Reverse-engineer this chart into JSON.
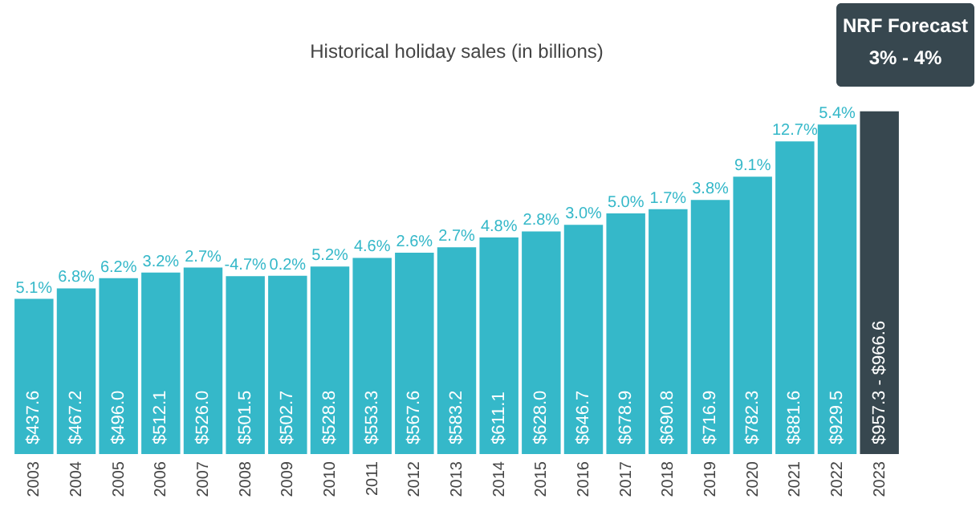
{
  "chart_data": {
    "type": "bar",
    "title": "Historical holiday sales (in billions)",
    "categories": [
      "2003",
      "2004",
      "2005",
      "2006",
      "2007",
      "2008",
      "2009",
      "2010",
      "2011",
      "2012",
      "2013",
      "2014",
      "2015",
      "2016",
      "2017",
      "2018",
      "2019",
      "2020",
      "2021",
      "2022",
      "2023"
    ],
    "values": [
      437.6,
      467.2,
      496.0,
      512.1,
      526.0,
      501.5,
      502.7,
      528.8,
      553.3,
      567.6,
      583.2,
      611.1,
      628.0,
      646.7,
      678.9,
      690.8,
      716.9,
      782.3,
      881.6,
      929.5,
      966.6
    ],
    "colors": [
      "#35b8c9",
      "#35b8c9",
      "#35b8c9",
      "#35b8c9",
      "#35b8c9",
      "#35b8c9",
      "#35b8c9",
      "#35b8c9",
      "#35b8c9",
      "#35b8c9",
      "#35b8c9",
      "#35b8c9",
      "#35b8c9",
      "#35b8c9",
      "#35b8c9",
      "#35b8c9",
      "#35b8c9",
      "#35b8c9",
      "#35b8c9",
      "#35b8c9",
      "#37474f"
    ],
    "value_labels": [
      "$437.6",
      "$467.2",
      "$496.0",
      "$512.1",
      "$526.0",
      "$501.5",
      "$502.7",
      "$528.8",
      "$553.3",
      "$567.6",
      "$583.2",
      "$611.1",
      "$628.0",
      "$646.7",
      "$678.9",
      "$690.8",
      "$716.9",
      "$782.3",
      "$881.6",
      "$929.5",
      null
    ],
    "annotations": [
      {
        "text": "5.1%",
        "x": "2003",
        "y": 437.6
      },
      {
        "text": "6.8%",
        "x": "2004",
        "y": 467.2
      },
      {
        "text": "6.2%",
        "x": "2005",
        "y": 496.0
      },
      {
        "text": "3.2%",
        "x": "2006",
        "y": 512.1
      },
      {
        "text": "2.7%",
        "x": "2007",
        "y": 526.0
      },
      {
        "text": "-4.7%",
        "x": "2008",
        "y": 501.5
      },
      {
        "text": "0.2%",
        "x": "2009",
        "y": 502.7
      },
      {
        "text": "5.2%",
        "x": "2010",
        "y": 528.8
      },
      {
        "text": "4.6%",
        "x": "2011",
        "y": 553.3
      },
      {
        "text": "2.6%",
        "x": "2012",
        "y": 567.6
      },
      {
        "text": "2.7%",
        "x": "2013",
        "y": 583.2
      },
      {
        "text": "4.8%",
        "x": "2014",
        "y": 611.1
      },
      {
        "text": "2.8%",
        "x": "2015",
        "y": 628.0
      },
      {
        "text": "3.0%",
        "x": "2016",
        "y": 646.7
      },
      {
        "text": "5.0%",
        "x": "2017",
        "y": 678.9
      },
      {
        "text": "1.7%",
        "x": "2018",
        "y": 690.8
      },
      {
        "text": "3.8%",
        "x": "2019",
        "y": 716.9
      },
      {
        "text": "9.1%",
        "x": "2020",
        "y": 782.3
      },
      {
        "text": "12.7%",
        "x": "2021",
        "y": 881.6
      },
      {
        "text": "5.4%",
        "x": "2022",
        "y": 929.5
      },
      "$957.3 - $966.6",
      "NRF Forecast",
      "3% - 4%"
    ]
  }
}
